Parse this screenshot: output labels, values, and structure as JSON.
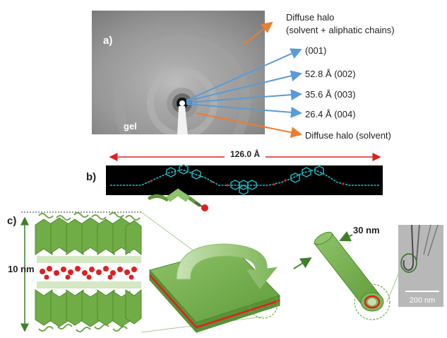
{
  "panel_a": {
    "letter": "a)",
    "sample_label": "gel",
    "annotations": [
      {
        "line1": "Diffuse halo",
        "line2": "(solvent + aliphatic chains)",
        "color": "#ed7d31"
      },
      {
        "line1": "(001)",
        "color": "#5b9bd5"
      },
      {
        "line1": "52.8 Å (002)",
        "color": "#5b9bd5"
      },
      {
        "line1": "35.6 Å (003)",
        "color": "#5b9bd5"
      },
      {
        "line1": "26.4 Å (004)",
        "color": "#5b9bd5"
      },
      {
        "line1": "Diffuse halo (solvent)",
        "color": "#ed7d31"
      }
    ]
  },
  "panel_b": {
    "letter": "b)",
    "length_label": "126.0 Å",
    "arrow_color": "#e02020",
    "molecule_color": "#1fbfc9"
  },
  "panel_c": {
    "letter": "c)",
    "height_label": "10 nm",
    "tube_label": "30 nm",
    "scale_bar_label": "200 nm",
    "green": "#70ad47",
    "red": "#e02020"
  }
}
